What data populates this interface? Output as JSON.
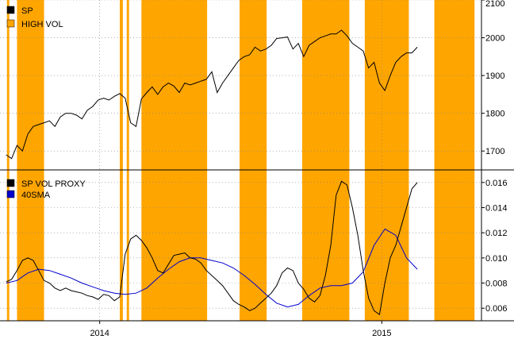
{
  "chart_data": [
    {
      "type": "line",
      "panel": "price",
      "ylim": [
        1650,
        2100
      ],
      "yticks": [
        1700,
        1800,
        1900,
        2000,
        2100
      ],
      "grid": true,
      "legend_position": "top-left",
      "legend": [
        {
          "label": "SP",
          "color": "#000000"
        },
        {
          "label": "HIGH VOL",
          "color": "#FFA500"
        }
      ],
      "series": [
        {
          "name": "SP",
          "color": "#000000",
          "x": [
            "2013-09-02",
            "2013-09-09",
            "2013-09-16",
            "2013-09-23",
            "2013-09-30",
            "2013-10-07",
            "2013-10-14",
            "2013-10-21",
            "2013-10-28",
            "2013-11-04",
            "2013-11-11",
            "2013-11-18",
            "2013-11-25",
            "2013-12-02",
            "2013-12-09",
            "2013-12-16",
            "2013-12-23",
            "2013-12-30",
            "2014-01-06",
            "2014-01-13",
            "2014-01-20",
            "2014-01-27",
            "2014-02-03",
            "2014-02-10",
            "2014-02-17",
            "2014-02-24",
            "2014-03-03",
            "2014-03-10",
            "2014-03-17",
            "2014-03-24",
            "2014-03-31",
            "2014-04-07",
            "2014-04-14",
            "2014-04-21",
            "2014-04-28",
            "2014-05-05",
            "2014-05-12",
            "2014-05-19",
            "2014-05-26",
            "2014-06-02",
            "2014-06-09",
            "2014-06-16",
            "2014-06-23",
            "2014-06-30",
            "2014-07-07",
            "2014-07-14",
            "2014-07-21",
            "2014-07-28",
            "2014-08-04",
            "2014-08-11",
            "2014-08-18",
            "2014-08-25",
            "2014-09-01",
            "2014-09-08",
            "2014-09-15",
            "2014-09-22",
            "2014-09-29",
            "2014-10-06",
            "2014-10-13",
            "2014-10-20",
            "2014-10-27",
            "2014-11-03",
            "2014-11-10",
            "2014-11-17",
            "2014-11-24",
            "2014-12-01",
            "2014-12-08",
            "2014-12-15",
            "2014-12-22",
            "2014-12-29",
            "2015-01-05",
            "2015-01-12",
            "2015-01-19",
            "2015-01-26",
            "2015-02-02",
            "2015-02-09",
            "2015-02-16"
          ],
          "values": [
            1690,
            1680,
            1715,
            1700,
            1745,
            1765,
            1770,
            1775,
            1780,
            1765,
            1790,
            1800,
            1800,
            1795,
            1785,
            1808,
            1818,
            1835,
            1840,
            1835,
            1845,
            1852,
            1840,
            1775,
            1765,
            1838,
            1855,
            1870,
            1850,
            1870,
            1880,
            1872,
            1855,
            1880,
            1875,
            1880,
            1885,
            1890,
            1910,
            1855,
            1880,
            1900,
            1920,
            1940,
            1950,
            1955,
            1975,
            1965,
            1970,
            1980,
            1998,
            2000,
            2002,
            1970,
            1985,
            1950,
            1980,
            1990,
            2000,
            2005,
            2010,
            2010,
            2020,
            2005,
            1985,
            1975,
            1965,
            1920,
            1935,
            1880,
            1860,
            1900,
            1935,
            1950,
            1960,
            1960,
            1975
          ]
        }
      ]
    },
    {
      "type": "line",
      "panel": "volatility",
      "ylim": [
        0.005,
        0.017
      ],
      "yticks": [
        0.006,
        0.008,
        0.01,
        0.012,
        0.014,
        0.016
      ],
      "ytick_labels": [
        "0.006",
        "0.008",
        "0.010",
        "0.012",
        "0.014",
        "0.016"
      ],
      "grid": true,
      "legend_position": "top-left",
      "legend": [
        {
          "label": "SP VOL PROXY",
          "color": "#000000"
        },
        {
          "label": " 40SMA",
          "color": "#0000CC"
        }
      ],
      "series": [
        {
          "name": "SP VOL PROXY",
          "color": "#000000",
          "x": [
            "2013-09-02",
            "2013-09-09",
            "2013-09-16",
            "2013-09-23",
            "2013-09-30",
            "2013-10-07",
            "2013-10-14",
            "2013-10-21",
            "2013-10-28",
            "2013-11-04",
            "2013-11-11",
            "2013-11-18",
            "2013-11-25",
            "2013-12-02",
            "2013-12-09",
            "2013-12-16",
            "2013-12-23",
            "2013-12-30",
            "2014-01-06",
            "2014-01-13",
            "2014-01-20",
            "2014-01-27",
            "2014-02-03",
            "2014-02-10",
            "2014-02-17",
            "2014-02-24",
            "2014-03-03",
            "2014-03-10",
            "2014-03-17",
            "2014-03-24",
            "2014-03-31",
            "2014-04-07",
            "2014-04-14",
            "2014-04-21",
            "2014-04-28",
            "2014-05-05",
            "2014-05-12",
            "2014-05-19",
            "2014-05-26",
            "2014-06-02",
            "2014-06-09",
            "2014-06-16",
            "2014-06-23",
            "2014-06-30",
            "2014-07-07",
            "2014-07-14",
            "2014-07-21",
            "2014-07-28",
            "2014-08-04",
            "2014-08-11",
            "2014-08-18",
            "2014-08-25",
            "2014-09-01",
            "2014-09-08",
            "2014-09-15",
            "2014-09-22",
            "2014-09-29",
            "2014-10-06",
            "2014-10-13",
            "2014-10-20",
            "2014-10-27",
            "2014-11-03",
            "2014-11-10",
            "2014-11-17",
            "2014-11-24",
            "2014-12-01",
            "2014-12-08",
            "2014-12-15",
            "2014-12-22",
            "2014-12-29",
            "2015-01-05",
            "2015-01-12",
            "2015-01-19",
            "2015-01-26",
            "2015-02-02",
            "2015-02-09",
            "2015-02-16"
          ],
          "values": [
            0.0081,
            0.0083,
            0.009,
            0.0098,
            0.01,
            0.0098,
            0.009,
            0.0082,
            0.008,
            0.0076,
            0.0074,
            0.0076,
            0.0074,
            0.0073,
            0.0072,
            0.007,
            0.0069,
            0.0067,
            0.0071,
            0.007,
            0.0066,
            0.0069,
            0.0103,
            0.0115,
            0.0118,
            0.0114,
            0.0108,
            0.01,
            0.009,
            0.0088,
            0.0095,
            0.0102,
            0.0103,
            0.0104,
            0.01,
            0.0099,
            0.0096,
            0.009,
            0.0086,
            0.0082,
            0.0078,
            0.0072,
            0.0066,
            0.0063,
            0.0061,
            0.0058,
            0.006,
            0.0064,
            0.0068,
            0.0072,
            0.0078,
            0.0088,
            0.0092,
            0.009,
            0.008,
            0.0075,
            0.0068,
            0.0065,
            0.007,
            0.0086,
            0.011,
            0.015,
            0.0161,
            0.0158,
            0.014,
            0.0118,
            0.009,
            0.0068,
            0.0058,
            0.0055,
            0.008,
            0.01,
            0.011,
            0.0125,
            0.014,
            0.0155,
            0.016
          ]
        },
        {
          "name": " 40SMA",
          "color": "#0000CC",
          "x": [
            "2013-09-02",
            "2013-09-16",
            "2013-09-30",
            "2013-10-14",
            "2013-10-28",
            "2013-11-11",
            "2013-11-25",
            "2013-12-09",
            "2013-12-23",
            "2014-01-06",
            "2014-01-20",
            "2014-02-03",
            "2014-02-17",
            "2014-03-03",
            "2014-03-17",
            "2014-03-31",
            "2014-04-14",
            "2014-04-28",
            "2014-05-12",
            "2014-05-26",
            "2014-06-09",
            "2014-06-23",
            "2014-07-07",
            "2014-07-21",
            "2014-08-04",
            "2014-08-18",
            "2014-09-01",
            "2014-09-15",
            "2014-09-29",
            "2014-10-13",
            "2014-10-27",
            "2014-11-10",
            "2014-11-24",
            "2014-12-08",
            "2014-12-22",
            "2015-01-05",
            "2015-01-19",
            "2015-02-02",
            "2015-02-16"
          ],
          "values": [
            0.008,
            0.0082,
            0.0088,
            0.0091,
            0.009,
            0.0087,
            0.0084,
            0.008,
            0.0077,
            0.0074,
            0.0072,
            0.0071,
            0.0072,
            0.0076,
            0.0084,
            0.0091,
            0.0097,
            0.01,
            0.01,
            0.0098,
            0.0096,
            0.0092,
            0.0086,
            0.0079,
            0.0071,
            0.0064,
            0.0061,
            0.0063,
            0.007,
            0.0076,
            0.0078,
            0.0078,
            0.008,
            0.0089,
            0.011,
            0.0123,
            0.0118,
            0.01,
            0.0091
          ]
        }
      ]
    }
  ],
  "high_vol_periods": [
    [
      "2013-09-03",
      "2013-09-06"
    ],
    [
      "2013-09-16",
      "2013-10-21"
    ],
    [
      "2014-01-27",
      "2014-01-31"
    ],
    [
      "2014-02-05",
      "2014-02-08"
    ],
    [
      "2014-02-24",
      "2014-05-20"
    ],
    [
      "2014-07-01",
      "2014-08-05"
    ],
    [
      "2014-09-20",
      "2014-11-20"
    ],
    [
      "2014-12-10",
      "2015-02-05"
    ],
    [
      "2015-03-10",
      "2015-05-01"
    ]
  ],
  "x_axis": {
    "range": [
      "2013-08-25",
      "2015-05-10"
    ],
    "ticks": [
      {
        "date": "2014-01-01",
        "label": "2014"
      },
      {
        "date": "2015-01-01",
        "label": "2015"
      }
    ]
  },
  "colors": {
    "high_vol": "#FFA500",
    "grid": "#808080",
    "price_line": "#000000",
    "vol_line": "#000000",
    "sma_line": "#0000CC"
  }
}
